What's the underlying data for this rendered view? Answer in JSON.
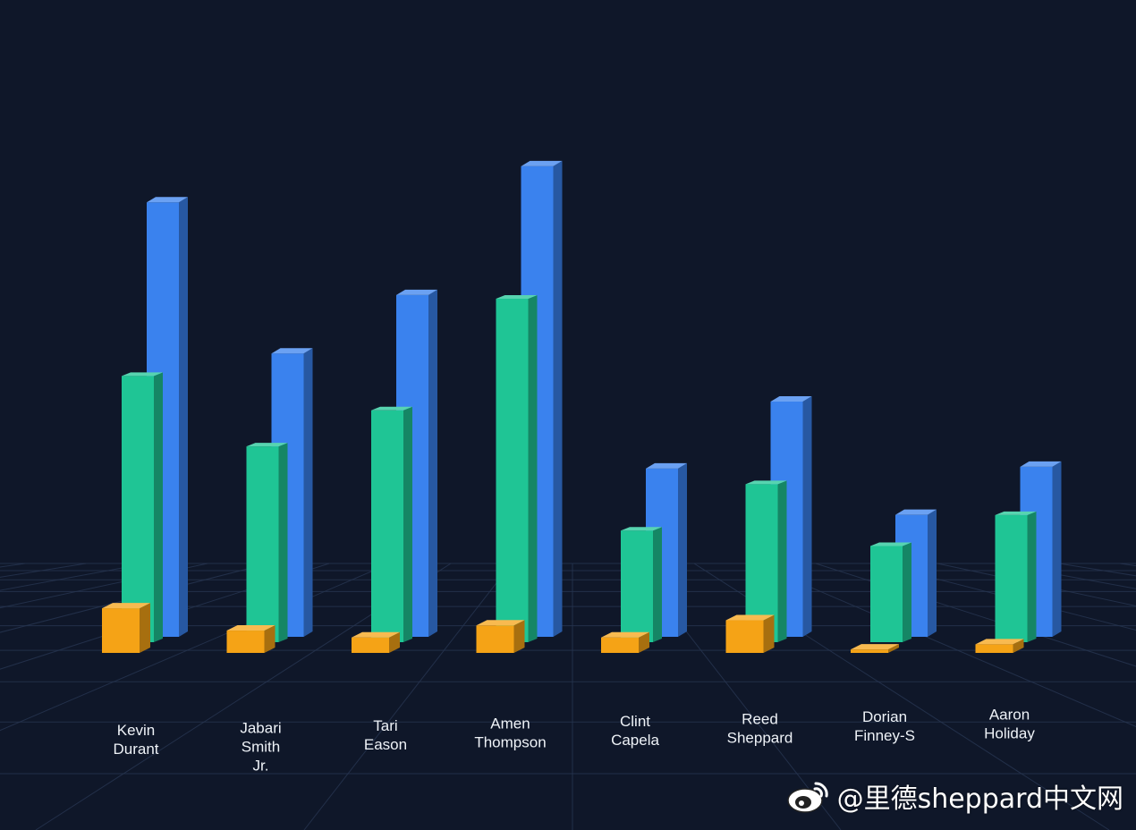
{
  "chart_data": {
    "type": "bar",
    "title": "",
    "xlabel": "",
    "ylabel": "",
    "categories": [
      [
        "Kevin",
        "Durant"
      ],
      [
        "Jabari",
        "Smith",
        "Jr."
      ],
      [
        "Tari",
        "Eason"
      ],
      [
        "Amen",
        "Thompson"
      ],
      [
        "Clint",
        "Capela"
      ],
      [
        "Reed",
        "Sheppard"
      ],
      [
        "Dorian",
        "Finney-S"
      ],
      [
        "Aaron",
        "Holiday"
      ]
    ],
    "series": [
      {
        "color": "#3a82ee",
        "values": [
          25.3,
          16.5,
          19.9,
          27.4,
          9.8,
          13.7,
          7.1,
          9.9
        ]
      },
      {
        "color": "#1fc595",
        "values": [
          15.5,
          11.4,
          13.5,
          20.0,
          6.5,
          9.2,
          5.6,
          7.4
        ]
      },
      {
        "color": "#f5a316",
        "values": [
          2.6,
          1.3,
          0.9,
          1.6,
          0.9,
          1.9,
          0.2,
          0.5
        ]
      }
    ],
    "ylim": [
      0,
      30
    ],
    "grid": true
  },
  "watermark": {
    "icon": "weibo-icon",
    "text": "@里德sheppard中文网"
  }
}
